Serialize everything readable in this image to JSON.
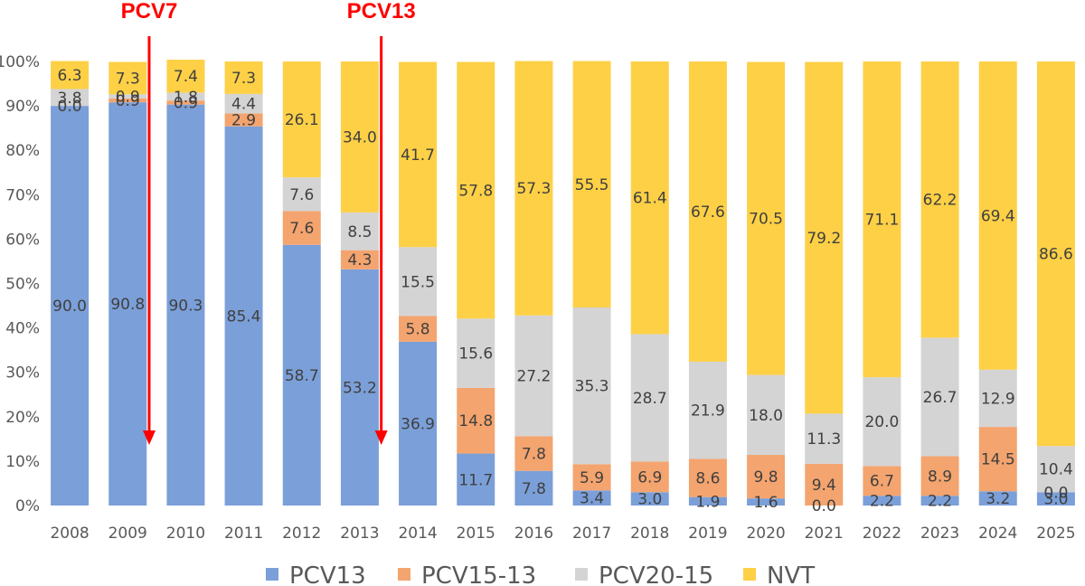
{
  "chart_data": {
    "type": "bar",
    "stacked": true,
    "normalized": true,
    "categories": [
      "2008",
      "2009",
      "2010",
      "2011",
      "2012",
      "2013",
      "2014",
      "2015",
      "2016",
      "2017",
      "2018",
      "2019",
      "2020",
      "2021",
      "2022",
      "2023",
      "2024",
      "2025"
    ],
    "series": [
      {
        "name": "PCV13",
        "color": "#7b9fd8",
        "values": [
          90.0,
          90.8,
          90.3,
          85.4,
          58.7,
          53.2,
          36.9,
          11.7,
          7.8,
          3.4,
          3.0,
          1.9,
          1.6,
          0.0,
          2.2,
          2.2,
          3.2,
          3.0
        ],
        "labels": [
          "90.0",
          "90.8",
          "90.3",
          "85.4",
          "58.7",
          "53.2",
          "36.9",
          "11.7",
          "7.8",
          "3.4",
          "3.0",
          "1.9",
          "1.6",
          "0.0",
          "2.2",
          "2.2",
          "3.2",
          "3.0"
        ]
      },
      {
        "name": "PCV15-13",
        "color": "#f4a46e",
        "values": [
          0.0,
          0.9,
          0.9,
          2.9,
          7.6,
          4.3,
          5.8,
          14.8,
          7.8,
          5.9,
          6.9,
          8.6,
          9.8,
          9.4,
          6.7,
          8.9,
          14.5,
          0.0
        ],
        "labels": [
          "0.0",
          "0.9",
          "0.9",
          "2.9",
          "7.6",
          "4.3",
          "5.8",
          "14.8",
          "7.8",
          "5.9",
          "6.9",
          "8.6",
          "9.8",
          "9.4",
          "6.7",
          "8.9",
          "14.5",
          "0.0"
        ]
      },
      {
        "name": "PCV20-15",
        "color": "#d4d4d4",
        "values": [
          3.8,
          0.9,
          1.8,
          4.4,
          7.6,
          8.5,
          15.5,
          15.6,
          27.2,
          35.3,
          28.7,
          21.9,
          18.0,
          11.3,
          20.0,
          26.7,
          12.9,
          10.4
        ],
        "labels": [
          "3.8",
          "0.9",
          "1.8",
          "4.4",
          "7.6",
          "8.5",
          "15.5",
          "15.6",
          "27.2",
          "35.3",
          "28.7",
          "21.9",
          "18.0",
          "11.3",
          "20.0",
          "26.7",
          "12.9",
          "10.4"
        ]
      },
      {
        "name": "NVT",
        "color": "#fdd046",
        "values": [
          6.3,
          7.3,
          7.4,
          7.3,
          26.1,
          34.0,
          41.7,
          57.8,
          57.3,
          55.5,
          61.4,
          67.6,
          70.5,
          79.2,
          71.1,
          62.2,
          69.4,
          86.6
        ],
        "labels": [
          "6.3",
          "7.3",
          "7.4",
          "7.3",
          "26.1",
          "34.0",
          "41.7",
          "57.8",
          "57.3",
          "55.5",
          "61.4",
          "67.6",
          "70.5",
          "79.2",
          "71.1",
          "62.2",
          "69.4",
          "86.6"
        ]
      }
    ],
    "y_ticks": [
      "0%",
      "10%",
      "20%",
      "30%",
      "40%",
      "50%",
      "60%",
      "70%",
      "80%",
      "90%",
      "100%"
    ],
    "ylim": [
      0,
      100
    ],
    "grid": false,
    "legend_position": "bottom",
    "annotations": [
      {
        "text": "PCV7",
        "category": "2009",
        "color": "#ff0000"
      },
      {
        "text": "PCV13",
        "category": "2013",
        "color": "#ff0000"
      }
    ]
  }
}
